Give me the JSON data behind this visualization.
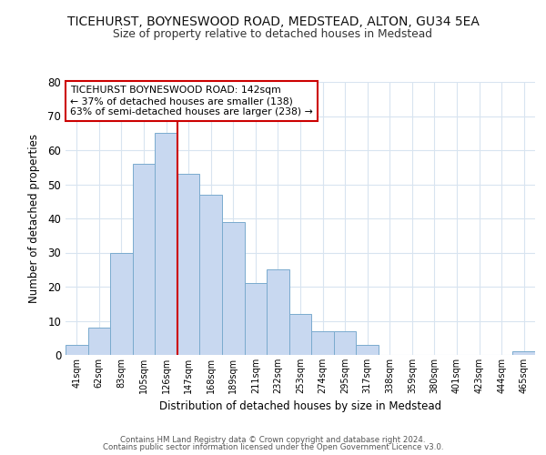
{
  "title1": "TICEHURST, BOYNESWOOD ROAD, MEDSTEAD, ALTON, GU34 5EA",
  "title2": "Size of property relative to detached houses in Medstead",
  "xlabel": "Distribution of detached houses by size in Medstead",
  "ylabel": "Number of detached properties",
  "bar_labels": [
    "41sqm",
    "62sqm",
    "83sqm",
    "105sqm",
    "126sqm",
    "147sqm",
    "168sqm",
    "189sqm",
    "211sqm",
    "232sqm",
    "253sqm",
    "274sqm",
    "295sqm",
    "317sqm",
    "338sqm",
    "359sqm",
    "380sqm",
    "401sqm",
    "423sqm",
    "444sqm",
    "465sqm"
  ],
  "bar_values": [
    3,
    8,
    30,
    56,
    65,
    53,
    47,
    39,
    21,
    25,
    12,
    7,
    7,
    3,
    0,
    0,
    0,
    0,
    0,
    0,
    1
  ],
  "bar_color": "#c8d8f0",
  "bar_edge_color": "#7aabce",
  "vline_index": 5,
  "vline_color": "#cc0000",
  "ylim": [
    0,
    80
  ],
  "yticks": [
    0,
    10,
    20,
    30,
    40,
    50,
    60,
    70,
    80
  ],
  "annotation_title": "TICEHURST BOYNESWOOD ROAD: 142sqm",
  "annotation_line1": "← 37% of detached houses are smaller (138)",
  "annotation_line2": "63% of semi-detached houses are larger (238) →",
  "annotation_box_color": "#ffffff",
  "annotation_edge_color": "#cc0000",
  "footer1": "Contains HM Land Registry data © Crown copyright and database right 2024.",
  "footer2": "Contains public sector information licensed under the Open Government Licence v3.0.",
  "background_color": "#ffffff",
  "plot_background_color": "#ffffff",
  "grid_color": "#d8e4f0"
}
